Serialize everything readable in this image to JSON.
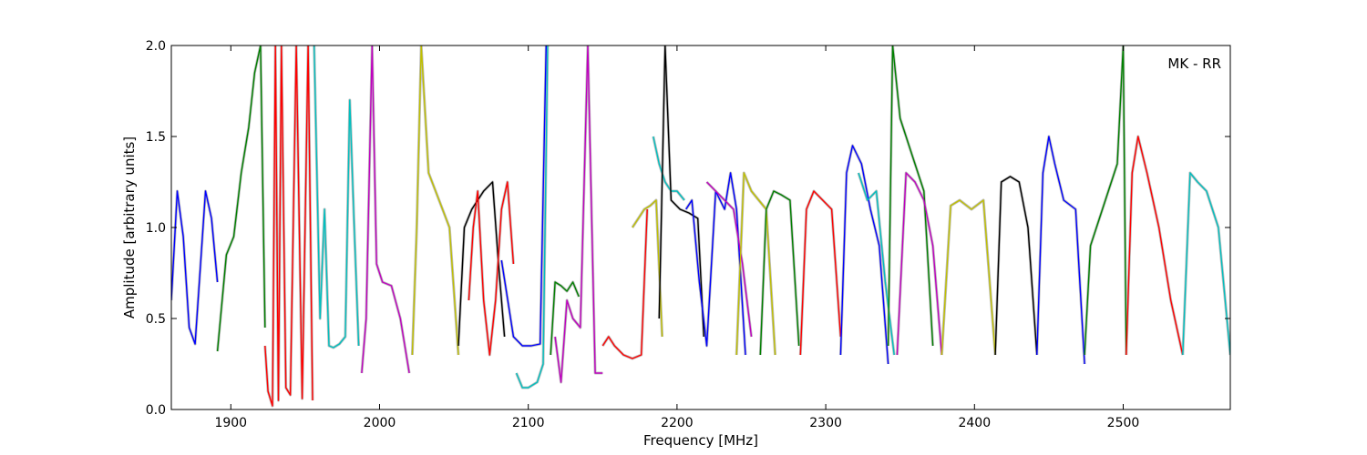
{
  "chart_data": {
    "type": "line",
    "title": "",
    "panel_label": "MK - RR",
    "xlabel": "Frequency [MHz]",
    "ylabel": "Amplitude [arbitrary units]",
    "xlim": [
      1860,
      2572
    ],
    "ylim": [
      0.0,
      2.0
    ],
    "xticks": [
      1900,
      2000,
      2100,
      2200,
      2300,
      2400,
      2500
    ],
    "xtick_labels": [
      "1900",
      "2000",
      "2100",
      "2200",
      "2300",
      "2400",
      "2500"
    ],
    "yticks": [
      0.0,
      0.5,
      1.0,
      1.5,
      2.0
    ],
    "ytick_labels": [
      "0.0",
      "0.5",
      "1.0",
      "1.5",
      "2.0"
    ],
    "grid": false,
    "legend": false,
    "reference_color": "#bfbfbf",
    "series": [
      {
        "color": "#0000ff",
        "x": [
          1860,
          1864,
          1868,
          1872,
          1876,
          1879,
          1883,
          1887,
          1891
        ],
        "y": [
          0.6,
          1.2,
          0.95,
          0.45,
          0.36,
          0.72,
          1.2,
          1.05,
          0.7
        ]
      },
      {
        "color": "#008000",
        "x": [
          1891,
          1897,
          1902,
          1907,
          1912,
          1916,
          1920,
          1923
        ],
        "y": [
          0.32,
          0.85,
          0.95,
          1.3,
          1.55,
          1.85,
          2.0,
          0.45
        ]
      },
      {
        "color": "#ff0000",
        "x": [
          1923,
          1925,
          1928,
          1930,
          1932,
          1934,
          1937,
          1940,
          1944,
          1948,
          1952,
          1955
        ],
        "y": [
          0.35,
          0.1,
          0.02,
          2.0,
          0.05,
          2.0,
          0.12,
          0.08,
          2.0,
          0.06,
          2.0,
          0.05
        ]
      },
      {
        "color": "#00bfbf",
        "x": [
          1956,
          1960,
          1963,
          1966,
          1969,
          1973,
          1977,
          1980,
          1983,
          1986
        ],
        "y": [
          2.0,
          0.5,
          1.1,
          0.35,
          0.34,
          0.36,
          0.4,
          1.7,
          1.0,
          0.35
        ]
      },
      {
        "color": "#bf00bf",
        "x": [
          1988,
          1991,
          1995,
          1998,
          2002,
          2008,
          2014,
          2020
        ],
        "y": [
          0.2,
          0.5,
          2.0,
          0.8,
          0.7,
          0.68,
          0.5,
          0.2
        ]
      },
      {
        "color": "#bfbf00",
        "x": [
          2022,
          2025,
          2028,
          2033,
          2040,
          2047,
          2053
        ],
        "y": [
          0.3,
          1.0,
          2.0,
          1.3,
          1.15,
          1.0,
          0.3
        ]
      },
      {
        "color": "#000000",
        "x": [
          2053,
          2057,
          2062,
          2070,
          2076,
          2080,
          2084
        ],
        "y": [
          0.35,
          1.0,
          1.1,
          1.2,
          1.25,
          0.8,
          0.4
        ]
      },
      {
        "color": "#ff0000",
        "x": [
          2060,
          2063,
          2066,
          2070,
          2074,
          2078,
          2082,
          2086,
          2090
        ],
        "y": [
          0.6,
          1.0,
          1.2,
          0.6,
          0.3,
          0.6,
          1.1,
          1.25,
          0.8
        ]
      },
      {
        "color": "#0000ff",
        "x": [
          2082,
          2090,
          2096,
          2102,
          2108,
          2112
        ],
        "y": [
          0.82,
          0.4,
          0.35,
          0.35,
          0.36,
          2.0
        ]
      },
      {
        "color": "#00bfbf",
        "x": [
          2092,
          2096,
          2100,
          2106,
          2110,
          2113
        ],
        "y": [
          0.2,
          0.12,
          0.12,
          0.15,
          0.25,
          2.0
        ]
      },
      {
        "color": "#008000",
        "x": [
          2115,
          2118,
          2122,
          2126,
          2130,
          2134
        ],
        "y": [
          0.3,
          0.7,
          0.68,
          0.65,
          0.7,
          0.62
        ]
      },
      {
        "color": "#bf00bf",
        "x": [
          2118,
          2122,
          2126,
          2130,
          2135,
          2140,
          2145,
          2150
        ],
        "y": [
          0.4,
          0.15,
          0.6,
          0.5,
          0.45,
          2.0,
          0.2,
          0.2
        ]
      },
      {
        "color": "#ff0000",
        "x": [
          2150,
          2154,
          2158,
          2164,
          2170,
          2176,
          2180
        ],
        "y": [
          0.35,
          0.4,
          0.35,
          0.3,
          0.28,
          0.3,
          1.1
        ]
      },
      {
        "color": "#bfbf00",
        "x": [
          2170,
          2174,
          2178,
          2182,
          2186,
          2190
        ],
        "y": [
          1.0,
          1.05,
          1.1,
          1.12,
          1.15,
          0.4
        ]
      },
      {
        "color": "#00bfbf",
        "x": [
          2184,
          2188,
          2192,
          2196,
          2200,
          2205
        ],
        "y": [
          1.5,
          1.35,
          1.25,
          1.2,
          1.2,
          1.15
        ]
      },
      {
        "color": "#000000",
        "x": [
          2188,
          2192,
          2196,
          2202,
          2208,
          2214,
          2218
        ],
        "y": [
          0.5,
          2.0,
          1.15,
          1.1,
          1.08,
          1.05,
          0.4
        ]
      },
      {
        "color": "#0000ff",
        "x": [
          2206,
          2210,
          2215,
          2220,
          2226,
          2232,
          2236,
          2240,
          2246
        ],
        "y": [
          1.1,
          1.15,
          0.7,
          0.35,
          1.2,
          1.1,
          1.3,
          1.1,
          0.3
        ]
      },
      {
        "color": "#bf00bf",
        "x": [
          2220,
          2226,
          2232,
          2238,
          2244,
          2250
        ],
        "y": [
          1.25,
          1.2,
          1.15,
          1.1,
          0.8,
          0.4
        ]
      },
      {
        "color": "#bfbf00",
        "x": [
          2240,
          2245,
          2250,
          2255,
          2260,
          2266
        ],
        "y": [
          0.3,
          1.3,
          1.2,
          1.15,
          1.1,
          0.3
        ]
      },
      {
        "color": "#008000",
        "x": [
          2256,
          2260,
          2265,
          2270,
          2276,
          2282
        ],
        "y": [
          0.3,
          1.1,
          1.2,
          1.18,
          1.15,
          0.35
        ]
      },
      {
        "color": "#ff0000",
        "x": [
          2283,
          2287,
          2292,
          2298,
          2304,
          2310
        ],
        "y": [
          0.3,
          1.1,
          1.2,
          1.15,
          1.1,
          0.4
        ]
      },
      {
        "color": "#0000ff",
        "x": [
          2310,
          2314,
          2318,
          2324,
          2330,
          2336,
          2342
        ],
        "y": [
          0.3,
          1.3,
          1.45,
          1.35,
          1.1,
          0.9,
          0.25
        ]
      },
      {
        "color": "#00bfbf",
        "x": [
          2322,
          2328,
          2334,
          2340,
          2346
        ],
        "y": [
          1.3,
          1.15,
          1.2,
          0.7,
          0.3
        ]
      },
      {
        "color": "#008000",
        "x": [
          2342,
          2345,
          2350,
          2358,
          2366,
          2372
        ],
        "y": [
          0.35,
          2.0,
          1.6,
          1.4,
          1.2,
          0.35
        ]
      },
      {
        "color": "#bf00bf",
        "x": [
          2348,
          2354,
          2360,
          2366,
          2372,
          2378
        ],
        "y": [
          0.3,
          1.3,
          1.25,
          1.15,
          0.9,
          0.3
        ]
      },
      {
        "color": "#bfbf00",
        "x": [
          2378,
          2384,
          2390,
          2398,
          2406,
          2414
        ],
        "y": [
          0.3,
          1.12,
          1.15,
          1.1,
          1.15,
          0.3
        ]
      },
      {
        "color": "#000000",
        "x": [
          2414,
          2418,
          2424,
          2430,
          2436,
          2442
        ],
        "y": [
          0.3,
          1.25,
          1.28,
          1.25,
          1.0,
          0.3
        ]
      },
      {
        "color": "#0000ff",
        "x": [
          2442,
          2446,
          2450,
          2454,
          2460,
          2468,
          2474
        ],
        "y": [
          0.3,
          1.3,
          1.5,
          1.35,
          1.15,
          1.1,
          0.25
        ]
      },
      {
        "color": "#008000",
        "x": [
          2474,
          2478,
          2484,
          2490,
          2496,
          2500,
          2502
        ],
        "y": [
          0.3,
          0.9,
          1.05,
          1.2,
          1.35,
          2.0,
          0.3
        ]
      },
      {
        "color": "#ff0000",
        "x": [
          2502,
          2506,
          2510,
          2516,
          2524,
          2532,
          2540
        ],
        "y": [
          0.3,
          1.3,
          1.5,
          1.3,
          1.0,
          0.6,
          0.3
        ]
      },
      {
        "color": "#00bfbf",
        "x": [
          2540,
          2545,
          2550,
          2556,
          2564,
          2572
        ],
        "y": [
          0.3,
          1.3,
          1.25,
          1.2,
          1.0,
          0.3
        ]
      }
    ]
  }
}
